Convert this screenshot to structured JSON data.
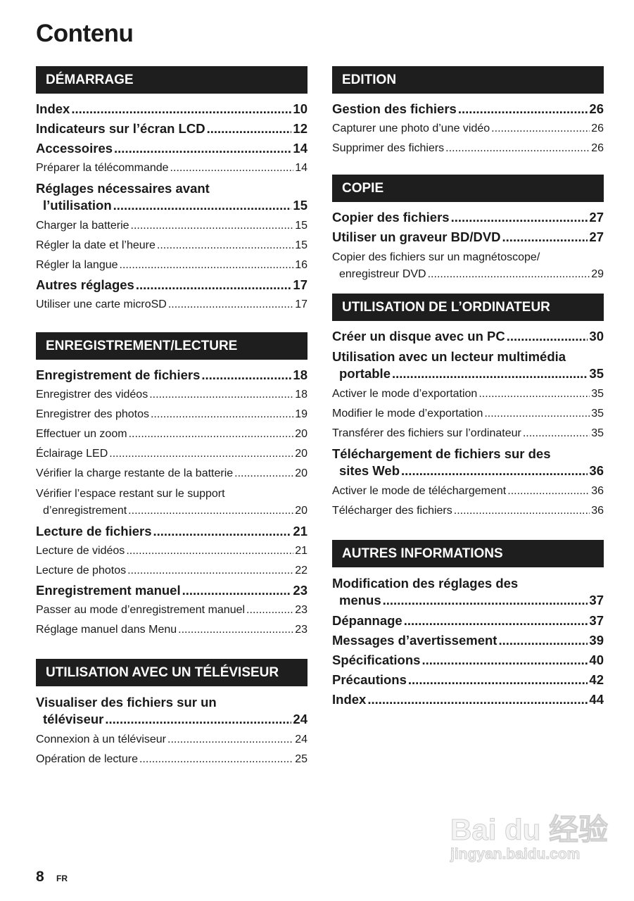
{
  "title": "Contenu",
  "sections": [
    {
      "heading": "DÉMARRAGE",
      "entries": [
        {
          "level": "main",
          "lines": [
            "Index"
          ],
          "page": "10"
        },
        {
          "level": "main",
          "lines": [
            "Indicateurs sur l’écran LCD"
          ],
          "page": "12"
        },
        {
          "level": "main",
          "lines": [
            "Accessoires"
          ],
          "page": "14"
        },
        {
          "level": "sub",
          "lines": [
            "Préparer la télécommande"
          ],
          "page": "14"
        },
        {
          "level": "main",
          "lines": [
            "Réglages nécessaires avant",
            "l’utilisation"
          ],
          "page": "15"
        },
        {
          "level": "sub",
          "lines": [
            "Charger la batterie"
          ],
          "page": "15"
        },
        {
          "level": "sub",
          "lines": [
            "Régler la date et l’heure"
          ],
          "page": "15"
        },
        {
          "level": "sub",
          "lines": [
            "Régler la langue"
          ],
          "page": "16"
        },
        {
          "level": "main",
          "lines": [
            "Autres réglages"
          ],
          "page": "17"
        },
        {
          "level": "sub",
          "lines": [
            "Utiliser une carte microSD"
          ],
          "page": "17"
        }
      ]
    },
    {
      "heading": "ENREGISTREMENT/LECTURE",
      "entries": [
        {
          "level": "main",
          "lines": [
            "Enregistrement de fichiers"
          ],
          "page": "18"
        },
        {
          "level": "sub",
          "lines": [
            "Enregistrer des vidéos"
          ],
          "page": "18"
        },
        {
          "level": "sub",
          "lines": [
            "Enregistrer des photos"
          ],
          "page": "19"
        },
        {
          "level": "sub",
          "lines": [
            "Effectuer un zoom"
          ],
          "page": "20"
        },
        {
          "level": "sub",
          "lines": [
            "Éclairage LED"
          ],
          "page": "20"
        },
        {
          "level": "sub",
          "lines": [
            "Vérifier la charge restante de la batterie"
          ],
          "page": "20"
        },
        {
          "level": "sub",
          "lines": [
            "Vérifier l’espace restant sur le support",
            "d’enregistrement"
          ],
          "page": "20"
        },
        {
          "level": "main",
          "lines": [
            "Lecture de fichiers"
          ],
          "page": "21"
        },
        {
          "level": "sub",
          "lines": [
            "Lecture de vidéos"
          ],
          "page": "21"
        },
        {
          "level": "sub",
          "lines": [
            "Lecture de photos"
          ],
          "page": "22"
        },
        {
          "level": "main",
          "lines": [
            "Enregistrement manuel"
          ],
          "page": "23"
        },
        {
          "level": "sub",
          "lines": [
            "Passer au mode d’enregistrement manuel"
          ],
          "page": "23"
        },
        {
          "level": "sub",
          "lines": [
            "Réglage manuel dans Menu"
          ],
          "page": "23"
        }
      ]
    },
    {
      "heading": "UTILISATION AVEC UN TÉLÉVISEUR",
      "entries": [
        {
          "level": "main",
          "lines": [
            "Visualiser des fichiers sur un",
            "téléviseur"
          ],
          "page": "24"
        },
        {
          "level": "sub",
          "lines": [
            "Connexion à un téléviseur"
          ],
          "page": "24"
        },
        {
          "level": "sub",
          "lines": [
            "Opération de lecture"
          ],
          "page": "25"
        }
      ]
    },
    {
      "heading": "EDITION",
      "entries": [
        {
          "level": "main",
          "lines": [
            "Gestion des fichiers"
          ],
          "page": "26"
        },
        {
          "level": "sub",
          "lines": [
            "Capturer une photo d’une vidéo"
          ],
          "page": "26"
        },
        {
          "level": "sub",
          "lines": [
            "Supprimer des fichiers"
          ],
          "page": "26"
        }
      ]
    },
    {
      "heading": "COPIE",
      "entries": [
        {
          "level": "main",
          "lines": [
            "Copier des fichiers"
          ],
          "page": "27"
        },
        {
          "level": "main",
          "lines": [
            "Utiliser un graveur BD/DVD"
          ],
          "page": "27"
        },
        {
          "level": "sub",
          "lines": [
            "Copier des fichiers sur un magnétoscope/",
            "enregistreur DVD"
          ],
          "page": "29"
        }
      ]
    },
    {
      "heading": "UTILISATION DE L’ORDINATEUR",
      "entries": [
        {
          "level": "main",
          "lines": [
            "Créer un disque avec un PC"
          ],
          "page": "30"
        },
        {
          "level": "main",
          "lines": [
            "Utilisation avec un lecteur multimédia",
            "portable"
          ],
          "page": "35"
        },
        {
          "level": "sub",
          "lines": [
            "Activer le mode d’exportation"
          ],
          "page": "35"
        },
        {
          "level": "sub",
          "lines": [
            "Modifier le mode d’exportation"
          ],
          "page": "35"
        },
        {
          "level": "sub",
          "lines": [
            "Transférer des fichiers sur l’ordinateur"
          ],
          "page": "35"
        },
        {
          "level": "main",
          "lines": [
            "Téléchargement de fichiers sur des",
            "sites Web"
          ],
          "page": "36"
        },
        {
          "level": "sub",
          "lines": [
            "Activer le mode de téléchargement"
          ],
          "page": "36"
        },
        {
          "level": "sub",
          "lines": [
            "Télécharger des fichiers"
          ],
          "page": "36"
        }
      ]
    },
    {
      "heading": "AUTRES INFORMATIONS",
      "entries": [
        {
          "level": "main",
          "lines": [
            "Modification des réglages des",
            "menus"
          ],
          "page": "37"
        },
        {
          "level": "main",
          "lines": [
            "Dépannage"
          ],
          "page": "37"
        },
        {
          "level": "main",
          "lines": [
            "Messages d’avertissement"
          ],
          "page": "39"
        },
        {
          "level": "main",
          "lines": [
            "Spécifications"
          ],
          "page": "40"
        },
        {
          "level": "main",
          "lines": [
            "Précautions"
          ],
          "page": "42"
        },
        {
          "level": "main",
          "lines": [
            "Index"
          ],
          "page": "44"
        }
      ]
    }
  ],
  "footer": {
    "page_number": "8",
    "language": "FR"
  },
  "watermark": {
    "brand": "Bai du 经验",
    "url": "jingyan.baidu.com"
  }
}
